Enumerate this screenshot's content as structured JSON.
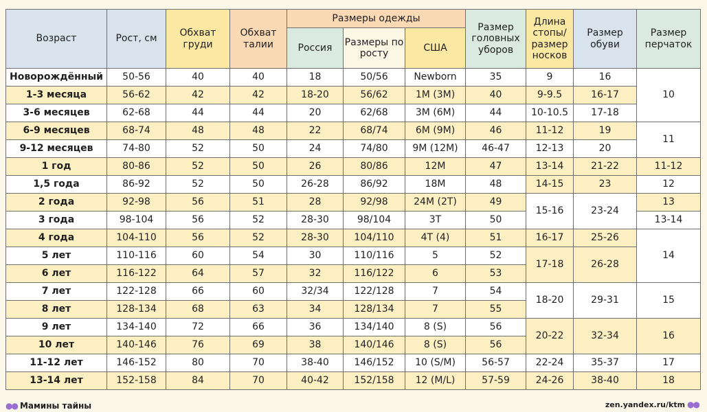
{
  "header": {
    "age": "Возраст",
    "height": "Рост, см",
    "chest": "Обхват груди",
    "waist": "Обхват талии",
    "clothing_group": "Размеры одежды",
    "russia": "Россия",
    "by_height": "Размеры по росту",
    "usa": "США",
    "head": "Размер головных уборов",
    "foot": "Длина стопы/ размер носков",
    "shoe": "Размер обуви",
    "gloves": "Размер перчаток"
  },
  "rows": [
    {
      "age": "Новорождённый",
      "height": "50-56",
      "chest": "40",
      "waist": "40",
      "russia": "18",
      "by_height": "50/56",
      "usa": "Newborn",
      "head": "35",
      "foot": "9",
      "shoe": "16",
      "gloves": "10"
    },
    {
      "age": "1-3 месяца",
      "height": "56-62",
      "chest": "42",
      "waist": "42",
      "russia": "18-20",
      "by_height": "56/62",
      "usa": "1M (3M)",
      "head": "40",
      "foot": "9-9.5",
      "shoe": "16-17"
    },
    {
      "age": "3-6 месяцев",
      "height": "62-68",
      "chest": "44",
      "waist": "44",
      "russia": "20",
      "by_height": "62/68",
      "usa": "3M (6M)",
      "head": "44",
      "foot": "10-10.5",
      "shoe": "17-18"
    },
    {
      "age": "6-9 месяцев",
      "height": "68-74",
      "chest": "48",
      "waist": "48",
      "russia": "22",
      "by_height": "68/74",
      "usa": "6M (9M)",
      "head": "46",
      "foot": "11-12",
      "shoe": "19",
      "gloves": "11"
    },
    {
      "age": "9-12 месяцев",
      "height": "74-80",
      "chest": "52",
      "waist": "50",
      "russia": "24",
      "by_height": "74/80",
      "usa": "9M (12M)",
      "head": "46-47",
      "foot": "12-13",
      "shoe": "20"
    },
    {
      "age": "1 год",
      "height": "80-86",
      "chest": "52",
      "waist": "50",
      "russia": "26",
      "by_height": "80/86",
      "usa": "12M",
      "head": "47",
      "foot": "13-14",
      "shoe": "21-22",
      "gloves": "11-12"
    },
    {
      "age": "1,5 года",
      "height": "86-92",
      "chest": "52",
      "waist": "50",
      "russia": "26-28",
      "by_height": "86/92",
      "usa": "18M",
      "head": "48",
      "foot": "14-15",
      "shoe": "23",
      "gloves": "12"
    },
    {
      "age": "2 года",
      "height": "92-98",
      "chest": "56",
      "waist": "51",
      "russia": "28",
      "by_height": "92/98",
      "usa": "24M (2T)",
      "head": "49",
      "foot": "15-16",
      "shoe": "23-24",
      "gloves": "13"
    },
    {
      "age": "3 года",
      "height": "98-104",
      "chest": "56",
      "waist": "52",
      "russia": "28-30",
      "by_height": "98/104",
      "usa": "3T",
      "head": "50",
      "gloves": "13-14"
    },
    {
      "age": "4 года",
      "height": "104-110",
      "chest": "56",
      "waist": "52",
      "russia": "28-30",
      "by_height": "104/110",
      "usa": "4T (4)",
      "head": "51",
      "foot": "16-17",
      "shoe": "25-26",
      "gloves": "14"
    },
    {
      "age": "5 лет",
      "height": "110-116",
      "chest": "60",
      "waist": "54",
      "russia": "30",
      "by_height": "110/116",
      "usa": "5",
      "head": "52",
      "foot": "17-18",
      "shoe": "26-28"
    },
    {
      "age": "6 лет",
      "height": "116-122",
      "chest": "64",
      "waist": "57",
      "russia": "32",
      "by_height": "116/122",
      "usa": "6",
      "head": "53"
    },
    {
      "age": "7 лет",
      "height": "122-128",
      "chest": "66",
      "waist": "60",
      "russia": "32/34",
      "by_height": "122/128",
      "usa": "7",
      "head": "54",
      "foot": "18-20",
      "shoe": "29-31",
      "gloves": "15"
    },
    {
      "age": "8 лет",
      "height": "128-134",
      "chest": "68",
      "waist": "63",
      "russia": "34",
      "by_height": "128/134",
      "usa": "7",
      "head": "55"
    },
    {
      "age": "9 лет",
      "height": "134-140",
      "chest": "72",
      "waist": "66",
      "russia": "36",
      "by_height": "134/140",
      "usa": "8 (S)",
      "head": "56",
      "foot": "20-22",
      "shoe": "32-34",
      "gloves": "16"
    },
    {
      "age": "10 лет",
      "height": "140-146",
      "chest": "76",
      "waist": "69",
      "russia": "38",
      "by_height": "140/146",
      "usa": "8 (S)",
      "head": "56"
    },
    {
      "age": "11-12 лет",
      "height": "146-152",
      "chest": "80",
      "waist": "70",
      "russia": "38-40",
      "by_height": "146/152",
      "usa": "10 (S/M)",
      "head": "56-57",
      "foot": "22-24",
      "shoe": "35-37",
      "gloves": "17"
    },
    {
      "age": "13-14 лет",
      "height": "152-158",
      "chest": "84",
      "waist": "70",
      "russia": "40-42",
      "by_height": "152/158",
      "usa": "12 (M/L)",
      "head": "57-59",
      "foot": "24-26",
      "shoe": "38-40",
      "gloves": "18"
    }
  ],
  "footer": {
    "left": "Мамины тайны",
    "right": "zen.yandex.ru/ktm"
  },
  "colors": {
    "background": "#fbf8ea",
    "row_yellow": "#fcefc2",
    "row_white": "#ffffff",
    "header_blue": "#d8e3ee",
    "header_yellow": "#fbe8a2",
    "header_peach": "#fbd9b5",
    "header_mint": "#dbeae0",
    "footprint": "#9b6fd2"
  },
  "icons": [
    "footprints-icon"
  ]
}
